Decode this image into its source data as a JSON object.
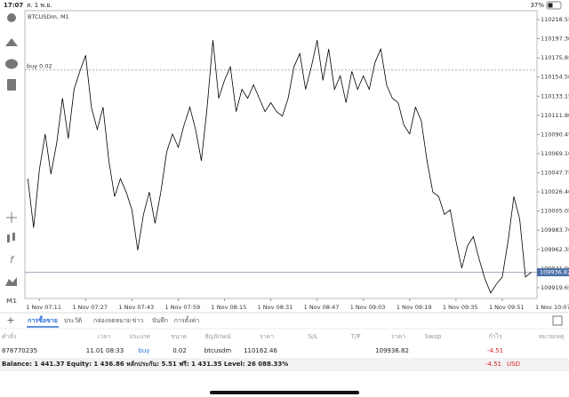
{
  "status_bar": {
    "time": "17:07",
    "date": "ส. 1 พ.ย.",
    "battery": "37%"
  },
  "toolbar": {
    "timeframe": "M1"
  },
  "chart_data": {
    "type": "line",
    "title": "BTCUSDm, M1",
    "x": [
      "1 Nov 07:07",
      "1 Nov 07:09",
      "1 Nov 07:11",
      "1 Nov 07:13",
      "1 Nov 07:15",
      "1 Nov 07:17",
      "1 Nov 07:19",
      "1 Nov 07:21",
      "1 Nov 07:23",
      "1 Nov 07:25",
      "1 Nov 07:27",
      "1 Nov 07:29",
      "1 Nov 07:31",
      "1 Nov 07:33",
      "1 Nov 07:35",
      "1 Nov 07:37",
      "1 Nov 07:39",
      "1 Nov 07:41",
      "1 Nov 07:43",
      "1 Nov 07:45",
      "1 Nov 07:47",
      "1 Nov 07:49",
      "1 Nov 07:51",
      "1 Nov 07:53",
      "1 Nov 07:55",
      "1 Nov 07:57",
      "1 Nov 07:59",
      "1 Nov 08:01",
      "1 Nov 08:03",
      "1 Nov 08:05",
      "1 Nov 08:07",
      "1 Nov 08:09",
      "1 Nov 08:11",
      "1 Nov 08:13",
      "1 Nov 08:15",
      "1 Nov 08:17",
      "1 Nov 08:19",
      "1 Nov 08:21",
      "1 Nov 08:23",
      "1 Nov 08:25",
      "1 Nov 08:27",
      "1 Nov 08:29",
      "1 Nov 08:31",
      "1 Nov 08:33",
      "1 Nov 08:35",
      "1 Nov 08:37",
      "1 Nov 08:39",
      "1 Nov 08:41",
      "1 Nov 08:43",
      "1 Nov 08:45",
      "1 Nov 08:47",
      "1 Nov 08:49",
      "1 Nov 08:51",
      "1 Nov 08:53",
      "1 Nov 08:55",
      "1 Nov 08:57",
      "1 Nov 08:59",
      "1 Nov 09:01",
      "1 Nov 09:03",
      "1 Nov 09:05",
      "1 Nov 09:07",
      "1 Nov 09:09",
      "1 Nov 09:11",
      "1 Nov 09:13",
      "1 Nov 09:15",
      "1 Nov 09:17",
      "1 Nov 09:19",
      "1 Nov 09:21",
      "1 Nov 09:23",
      "1 Nov 09:25",
      "1 Nov 09:27",
      "1 Nov 09:29",
      "1 Nov 09:31",
      "1 Nov 09:33",
      "1 Nov 09:35",
      "1 Nov 09:37",
      "1 Nov 09:39",
      "1 Nov 09:41",
      "1 Nov 09:43",
      "1 Nov 09:45",
      "1 Nov 09:47",
      "1 Nov 09:49",
      "1 Nov 09:51",
      "1 Nov 09:53",
      "1 Nov 09:55",
      "1 Nov 09:57",
      "1 Nov 09:59",
      "1 Nov 10:01"
    ],
    "series": [
      {
        "color": "#000000",
        "values": [
          110041.2,
          109986.4,
          110051.2,
          110091.0,
          110046.2,
          110081.1,
          110130.9,
          110086.0,
          110140.8,
          110160.8,
          110178.7,
          110120.9,
          110096.0,
          110120.9,
          110061.2,
          110021.3,
          110041.2,
          110026.3,
          110006.3,
          109961.5,
          110001.4,
          110026.3,
          109991.4,
          110026.3,
          110071.1,
          110091.0,
          110076.1,
          110101.0,
          110120.9,
          110096.0,
          110061.2,
          110120.9,
          110195.6,
          110130.9,
          110150.8,
          110165.8,
          110115.9,
          110140.8,
          110130.9,
          110145.8,
          110130.9,
          110115.9,
          110125.9,
          110115.9,
          110111.0,
          110130.9,
          110165.8,
          110180.7,
          110140.8,
          110165.8,
          110195.6,
          110150.8,
          110185.7,
          110140.8,
          110155.8,
          110125.9,
          110160.8,
          110140.8,
          110155.8,
          110140.8,
          110170.8,
          110185.7,
          110145.8,
          110130.9,
          110125.9,
          110101.0,
          110091.0,
          110120.9,
          110105.9,
          110061.2,
          110026.3,
          110021.3,
          110001.4,
          110006.3,
          109971.5,
          109941.6,
          109966.5,
          109976.5,
          109951.5,
          109929.6,
          109913.7,
          109923.7,
          109931.6,
          109971.5,
          110021.3,
          109996.4,
          109931.6,
          109936.8
        ]
      }
    ],
    "xlim": [
      "1 Nov 07:06",
      "1 Nov 10:03"
    ],
    "xticks": [
      "1 Nov 07:11",
      "1 Nov 07:27",
      "1 Nov 07:43",
      "1 Nov 07:59",
      "1 Nov 08:15",
      "1 Nov 08:31",
      "1 Nov 08:47",
      "1 Nov 09:03",
      "1 Nov 09:19",
      "1 Nov 09:35",
      "1 Nov 09:51",
      "1 Nov 10:07"
    ],
    "ylim": [
      109907.7,
      110228.5
    ],
    "yticks": [
      110218.55,
      {
        "value": 110197.3,
        "label": "110197.30"
      },
      110175.85,
      {
        "value": 110154.5,
        "label": "110154.50"
      },
      110133.15,
      {
        "value": 110111.8,
        "label": "110111.80"
      },
      110090.45,
      {
        "value": 110069.1,
        "label": "110069.10"
      },
      110047.75,
      {
        "value": 110026.4,
        "label": "110026.40"
      },
      110005.05,
      {
        "value": 109983.7,
        "label": "109983.70"
      },
      109962.35,
      {
        "value": 109941,
        "label": "109941.00"
      },
      109919.65
    ],
    "buy_line": {
      "label": "buy 0.02",
      "value": 110162.46
    },
    "bid": 109936.82
  },
  "tabs": [
    "การซื้อขาย",
    "ประวัติ",
    "กล่องจดหมาย",
    "ข่าว",
    "บันทึก",
    "การตั้งค่า"
  ],
  "table": {
    "header": [
      "คำสั่ง",
      "เวลา",
      "ประเภท",
      "ขนาด",
      "สัญลักษณ์",
      "ราคา",
      "S/L",
      "T/P",
      "ราคา",
      "Swap",
      "กำไร",
      "หมายเหตุ"
    ],
    "row": {
      "order": "878770235",
      "time": "11.01 08:33",
      "type": "buy",
      "volume": "0.02",
      "symbol": "btcusdm",
      "open_price": "110162.46",
      "price": "109936.82",
      "profit": "-4.51"
    }
  },
  "footer": {
    "summary": "Balance: 1 441.37 Equity: 1 436.86 หลักประกัน: 5.51 ฟรี: 1 431.35 Level: 26 088.33%",
    "profit": "-4.51",
    "currency": "USD"
  }
}
